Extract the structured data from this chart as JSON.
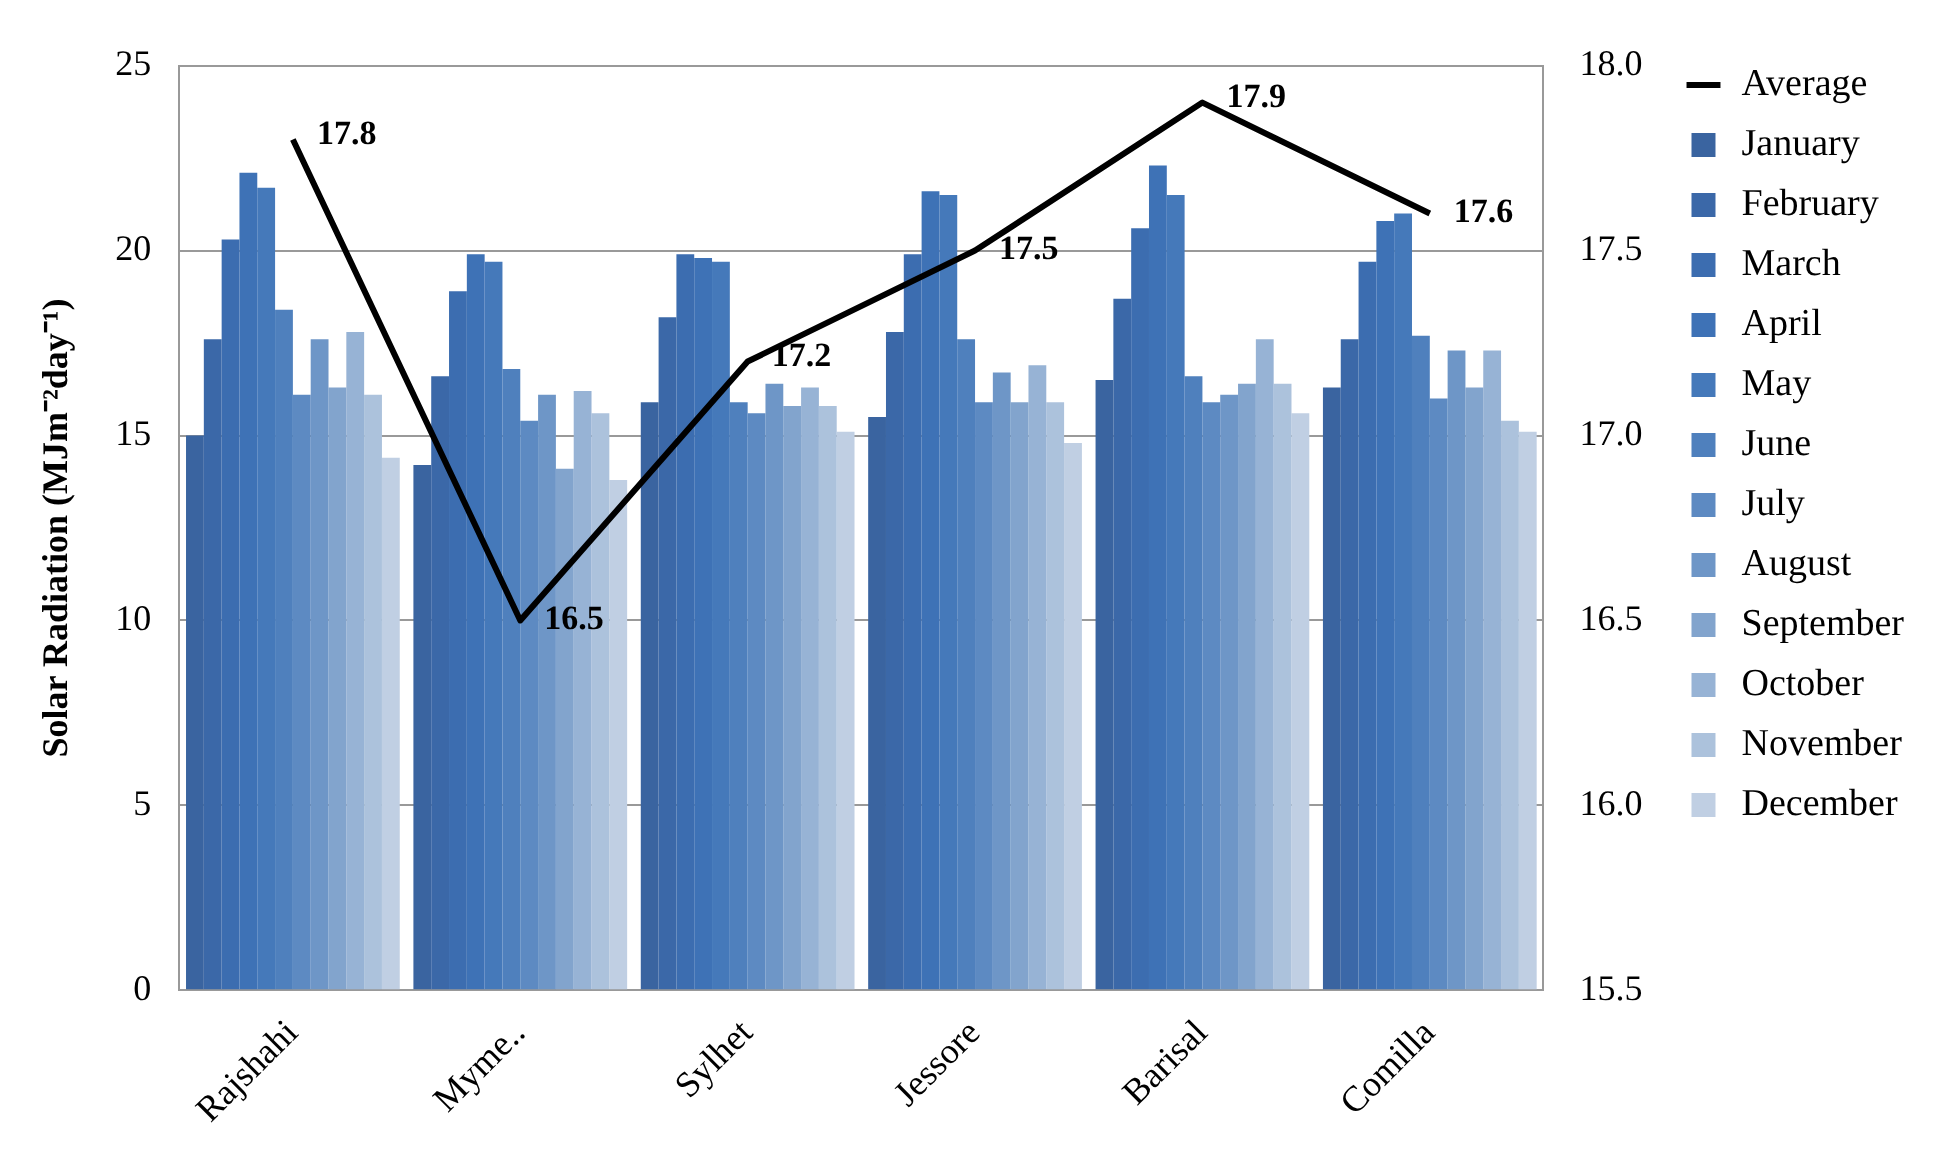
{
  "chart_data": {
    "type": "bar",
    "ylabel": "Solar Radiation (MJm⁻²day⁻¹)",
    "categories": [
      "Rajshahi",
      "Myme..",
      "Sylhet",
      "Jessore",
      "Barisal",
      "Comilla"
    ],
    "ylim": [
      0,
      25
    ],
    "yticks": [
      0,
      5,
      10,
      15,
      20,
      25
    ],
    "y2lim": [
      15.5,
      18
    ],
    "y2ticks": [
      15.5,
      {
        "value": 16,
        "label": "16.0"
      },
      16.5,
      {
        "value": 17,
        "label": "17.0"
      },
      17.5,
      {
        "value": 18,
        "label": "18.0"
      }
    ],
    "grid": "y",
    "legend": "right",
    "series": [
      {
        "name": "January",
        "color": "#3a64a0",
        "values": [
          15.0,
          14.2,
          15.9,
          15.5,
          16.5,
          16.3
        ]
      },
      {
        "name": "February",
        "color": "#3b68a8",
        "values": [
          17.6,
          16.6,
          18.2,
          17.8,
          18.7,
          17.6
        ]
      },
      {
        "name": "March",
        "color": "#3c6db0",
        "values": [
          20.3,
          18.9,
          19.9,
          19.9,
          20.6,
          19.7
        ]
      },
      {
        "name": "April",
        "color": "#3e72b6",
        "values": [
          22.1,
          19.9,
          19.8,
          21.6,
          22.3,
          20.8
        ]
      },
      {
        "name": "May",
        "color": "#4579ba",
        "values": [
          21.7,
          19.7,
          19.7,
          21.5,
          21.5,
          21.0
        ]
      },
      {
        "name": "June",
        "color": "#4f80bd",
        "values": [
          18.4,
          16.8,
          15.9,
          17.6,
          16.6,
          17.7
        ]
      },
      {
        "name": "July",
        "color": "#5d8ac2",
        "values": [
          16.1,
          15.4,
          15.6,
          15.9,
          15.9,
          16.0
        ]
      },
      {
        "name": "August",
        "color": "#6e96c7",
        "values": [
          17.6,
          16.1,
          16.4,
          16.7,
          16.1,
          17.3
        ]
      },
      {
        "name": "September",
        "color": "#82a4cd",
        "values": [
          16.3,
          14.1,
          15.8,
          15.9,
          16.4,
          16.3
        ]
      },
      {
        "name": "October",
        "color": "#97b3d5",
        "values": [
          17.8,
          16.2,
          16.3,
          16.9,
          17.6,
          17.3
        ]
      },
      {
        "name": "November",
        "color": "#acc2dc",
        "values": [
          16.1,
          15.6,
          15.8,
          15.9,
          16.4,
          15.4
        ]
      },
      {
        "name": "December",
        "color": "#c0cfe3",
        "values": [
          14.4,
          13.8,
          15.1,
          14.8,
          15.6,
          15.1
        ]
      },
      {
        "name": "Average",
        "type": "line",
        "axis": "y2",
        "color": "#000000",
        "marker": "none",
        "values": [
          17.8,
          16.5,
          17.2,
          17.5,
          17.9,
          17.6
        ],
        "value_labels": [
          "17.8",
          "16.5",
          "17.2",
          "17.5",
          "17.9",
          "17.6"
        ]
      }
    ]
  }
}
